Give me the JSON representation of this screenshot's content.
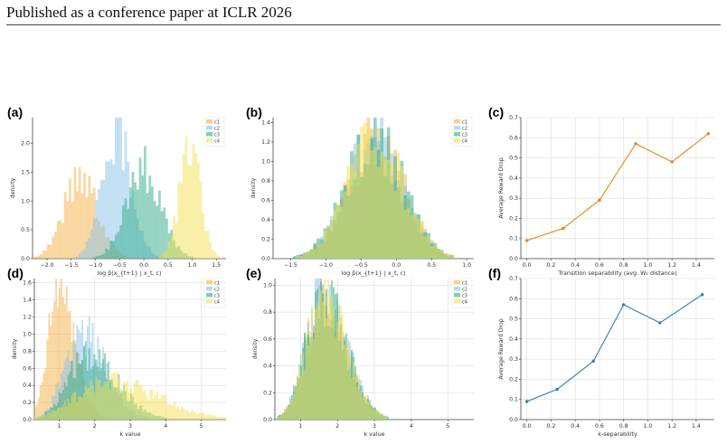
{
  "header": {
    "title": "Published as a conference paper at ICLR 2026"
  },
  "panels": [
    {
      "id": "a",
      "label": "(a)"
    },
    {
      "id": "b",
      "label": "(b)"
    },
    {
      "id": "c",
      "label": "(c)"
    },
    {
      "id": "d",
      "label": "(d)"
    },
    {
      "id": "e",
      "label": "(e)"
    },
    {
      "id": "f",
      "label": "(f)"
    }
  ],
  "colors": {
    "c1": "#f5b041",
    "c2": "#85c1e9",
    "c3": "#2eaa86",
    "c4": "#f4e04d",
    "line_c": "#e08a12",
    "line_f": "#2f7fb5",
    "grid": "#dddddd"
  },
  "chart_data": [
    {
      "id": "a",
      "type": "histogram",
      "xlabel": "log p̂(x_{t+1} | x_t, c)",
      "ylabel": "density",
      "xlim": [
        -2.3,
        1.7
      ],
      "ylim": [
        0,
        2.45
      ],
      "xticks": [
        -2.0,
        -1.5,
        -1.0,
        -0.5,
        0.0,
        0.5,
        1.0,
        1.5
      ],
      "yticks": [
        0.0,
        0.5,
        1.0,
        1.5,
        2.0
      ],
      "legend": [
        "c1",
        "c2",
        "c3",
        "c4"
      ],
      "legend_position": "top-right",
      "grid": false,
      "series": [
        {
          "name": "c1",
          "mean": -1.3,
          "sd": 0.35,
          "peak": 1.45
        },
        {
          "name": "c2",
          "mean": -0.55,
          "sd": 0.3,
          "peak": 2.2
        },
        {
          "name": "c3",
          "mean": 0.0,
          "sd": 0.35,
          "peak": 1.6
        },
        {
          "name": "c4",
          "mean": 0.95,
          "sd": 0.22,
          "peak": 1.85
        }
      ]
    },
    {
      "id": "b",
      "type": "histogram",
      "xlabel": "log p̂(x_{t+1} | x_t, c)",
      "ylabel": "density",
      "xlim": [
        -1.75,
        1.1
      ],
      "ylim": [
        0,
        1.45
      ],
      "xticks": [
        -1.5,
        -1.0,
        -0.5,
        0.0,
        0.5,
        1.0
      ],
      "yticks": [
        0.0,
        0.2,
        0.4,
        0.6,
        0.8,
        1.0,
        1.2,
        1.4
      ],
      "legend": [
        "c1",
        "c2",
        "c3",
        "c4"
      ],
      "legend_position": "top-right",
      "grid": false,
      "series": [
        {
          "name": "c1",
          "mean": -0.3,
          "sd": 0.4,
          "peak": 1.2
        },
        {
          "name": "c2",
          "mean": -0.3,
          "sd": 0.4,
          "peak": 1.2
        },
        {
          "name": "c3",
          "mean": -0.3,
          "sd": 0.4,
          "peak": 1.25
        },
        {
          "name": "c4",
          "mean": -0.3,
          "sd": 0.4,
          "peak": 1.2
        }
      ]
    },
    {
      "id": "c",
      "type": "line",
      "xlabel": "Transition separability (avg. W₁ distance)",
      "ylabel": "Average Reward Drop",
      "xlim": [
        -0.05,
        1.55
      ],
      "ylim": [
        0,
        0.7
      ],
      "xticks": [
        0.0,
        0.2,
        0.4,
        0.6,
        0.8,
        1.0,
        1.2,
        1.4
      ],
      "yticks": [
        0.0,
        0.1,
        0.2,
        0.3,
        0.4,
        0.5,
        0.6,
        0.7
      ],
      "grid": true,
      "x": [
        0.0,
        0.3,
        0.6,
        0.9,
        1.2,
        1.5
      ],
      "y": [
        0.09,
        0.15,
        0.29,
        0.57,
        0.48,
        0.62
      ]
    },
    {
      "id": "d",
      "type": "histogram",
      "xlabel": "k value",
      "ylabel": "density",
      "xlim": [
        0.3,
        5.7
      ],
      "ylim": [
        0,
        1.65
      ],
      "xticks": [
        1,
        2,
        3,
        4,
        5
      ],
      "yticks": [
        0.0,
        0.2,
        0.4,
        0.6,
        0.8,
        1.0,
        1.2,
        1.4,
        1.6
      ],
      "legend": [
        "c1",
        "c2",
        "c3",
        "c4"
      ],
      "legend_position": "top-right",
      "grid": true,
      "series": [
        {
          "name": "c1",
          "mean": 1.0,
          "sd": 0.3,
          "peak": 1.55
        },
        {
          "name": "c2",
          "mean": 1.6,
          "sd": 0.45,
          "peak": 1.05
        },
        {
          "name": "c3",
          "mean": 1.8,
          "sd": 0.55,
          "peak": 0.75
        },
        {
          "name": "c4",
          "mean": 2.4,
          "sd": 0.9,
          "peak": 0.45
        }
      ]
    },
    {
      "id": "e",
      "type": "histogram",
      "xlabel": "k value",
      "ylabel": "density",
      "xlim": [
        0.3,
        5.7
      ],
      "ylim": [
        0,
        1.05
      ],
      "xticks": [
        1,
        2,
        3,
        4,
        5
      ],
      "yticks": [
        0.0,
        0.2,
        0.4,
        0.6,
        0.8,
        1.0
      ],
      "legend": [
        "c1",
        "c2",
        "c3",
        "c4"
      ],
      "legend_position": "top-right",
      "grid": true,
      "series": [
        {
          "name": "c1",
          "mean": 1.6,
          "sd": 0.45,
          "peak": 0.9
        },
        {
          "name": "c2",
          "mean": 1.6,
          "sd": 0.45,
          "peak": 0.95
        },
        {
          "name": "c3",
          "mean": 1.6,
          "sd": 0.45,
          "peak": 0.92
        },
        {
          "name": "c4",
          "mean": 1.6,
          "sd": 0.45,
          "peak": 0.9
        }
      ]
    },
    {
      "id": "f",
      "type": "line",
      "xlabel": "k-separability",
      "ylabel": "Average Reward Drop",
      "xlim": [
        -0.05,
        1.55
      ],
      "ylim": [
        0,
        0.7
      ],
      "xticks": [
        0.0,
        0.2,
        0.4,
        0.6,
        0.8,
        1.0,
        1.2,
        1.4
      ],
      "yticks": [
        0.0,
        0.1,
        0.2,
        0.3,
        0.4,
        0.5,
        0.6,
        0.7
      ],
      "grid": true,
      "x": [
        0.0,
        0.25,
        0.55,
        0.8,
        1.1,
        1.45
      ],
      "y": [
        0.09,
        0.15,
        0.29,
        0.57,
        0.48,
        0.62
      ]
    }
  ]
}
